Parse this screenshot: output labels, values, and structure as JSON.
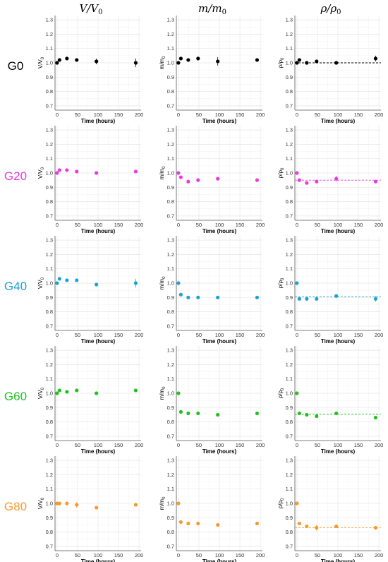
{
  "column_headers": [
    {
      "main": "V/V",
      "sub": "0"
    },
    {
      "main": "m/m",
      "sub": "0"
    },
    {
      "main": "ρ/ρ",
      "sub": "0"
    }
  ],
  "row_labels": [
    "G0",
    "G20",
    "G40",
    "G60",
    "G80"
  ],
  "colors": {
    "G0": "#000000",
    "G20": "#e83ae0",
    "G40": "#1aa3cf",
    "G60": "#1ec21e",
    "G80": "#f79a2e",
    "grid": "#e6e6e6",
    "axis": "#555555"
  },
  "axis_text": {
    "xlabel": "Time (hours)",
    "ylabels": [
      {
        "main": "V/V",
        "sub": "0"
      },
      {
        "main": "m/m",
        "sub": "0"
      },
      {
        "main": "ρ/ρ",
        "sub": "0"
      }
    ]
  },
  "chart_data": {
    "type": "scatter",
    "layout": "5 rows x 3 columns",
    "xlim": [
      -5,
      205
    ],
    "ylim": [
      0.67,
      1.33
    ],
    "x_ticks": [
      0,
      50,
      100,
      150,
      200
    ],
    "y_ticks": [
      0.7,
      0.8,
      0.9,
      1.0,
      1.1,
      1.2,
      1.3
    ],
    "y_tick_labels": [
      "0.7",
      "0.8",
      "0.9",
      "1.0",
      "1.1",
      "1.2",
      "1.3"
    ],
    "x": [
      0,
      6,
      24,
      48,
      96,
      192
    ],
    "panels": [
      {
        "row": "G0",
        "col": "V/V0",
        "y": [
          1.0,
          1.02,
          1.03,
          1.02,
          1.01,
          1.0
        ],
        "err": [
          0.01,
          0.01,
          0.01,
          0.01,
          0.02,
          0.03
        ],
        "fit": null
      },
      {
        "row": "G0",
        "col": "m/m0",
        "y": [
          1.0,
          1.03,
          1.02,
          1.03,
          1.01,
          1.02
        ],
        "err": [
          0.005,
          0.005,
          0.005,
          0.005,
          0.03,
          0.005
        ],
        "fit": null
      },
      {
        "row": "G0",
        "col": "ρ/ρ0",
        "y": [
          1.0,
          1.02,
          1.0,
          1.01,
          1.0,
          1.03
        ],
        "err": [
          0.01,
          0.01,
          0.01,
          0.01,
          0.01,
          0.02
        ],
        "fit": 1.0
      },
      {
        "row": "G20",
        "col": "V/V0",
        "y": [
          1.0,
          1.02,
          1.02,
          1.01,
          1.0,
          1.01
        ],
        "err": [
          0.01,
          0.01,
          0.01,
          0.01,
          0.01,
          0.01
        ],
        "fit": null
      },
      {
        "row": "G20",
        "col": "m/m0",
        "y": [
          1.0,
          0.97,
          0.94,
          0.95,
          0.96,
          0.95
        ],
        "err": [
          0.005,
          0.005,
          0.005,
          0.005,
          0.005,
          0.005
        ],
        "fit": null
      },
      {
        "row": "G20",
        "col": "ρ/ρ0",
        "y": [
          1.0,
          0.95,
          0.93,
          0.94,
          0.96,
          0.94
        ],
        "err": [
          0.005,
          0.01,
          0.01,
          0.01,
          0.02,
          0.01
        ],
        "fit": 0.95
      },
      {
        "row": "G40",
        "col": "V/V0",
        "y": [
          1.0,
          1.03,
          1.02,
          1.02,
          0.99,
          1.0
        ],
        "err": [
          0.01,
          0.01,
          0.01,
          0.01,
          0.01,
          0.03
        ],
        "fit": null
      },
      {
        "row": "G40",
        "col": "m/m0",
        "y": [
          1.0,
          0.92,
          0.9,
          0.9,
          0.9,
          0.9
        ],
        "err": [
          0.005,
          0.005,
          0.005,
          0.005,
          0.005,
          0.005
        ],
        "fit": null
      },
      {
        "row": "G40",
        "col": "ρ/ρ0",
        "y": [
          1.0,
          0.89,
          0.89,
          0.89,
          0.91,
          0.89
        ],
        "err": [
          0.005,
          0.01,
          0.01,
          0.01,
          0.01,
          0.02
        ],
        "fit": 0.905
      },
      {
        "row": "G60",
        "col": "V/V0",
        "y": [
          1.0,
          1.02,
          1.01,
          1.02,
          1.0,
          1.02
        ],
        "err": [
          0.01,
          0.01,
          0.01,
          0.01,
          0.01,
          0.01
        ],
        "fit": null
      },
      {
        "row": "G60",
        "col": "m/m0",
        "y": [
          1.0,
          0.87,
          0.86,
          0.86,
          0.85,
          0.86
        ],
        "err": [
          0.005,
          0.005,
          0.005,
          0.005,
          0.005,
          0.005
        ],
        "fit": null
      },
      {
        "row": "G60",
        "col": "ρ/ρ0",
        "y": [
          1.0,
          0.86,
          0.85,
          0.84,
          0.86,
          0.83
        ],
        "err": [
          0.005,
          0.01,
          0.01,
          0.01,
          0.01,
          0.01
        ],
        "fit": 0.855
      },
      {
        "row": "G80",
        "col": "V/V0",
        "y": [
          1.0,
          1.0,
          1.0,
          0.99,
          0.97,
          0.99
        ],
        "err": [
          0.01,
          0.01,
          0.01,
          0.02,
          0.01,
          0.01
        ],
        "fit": null
      },
      {
        "row": "G80",
        "col": "m/m0",
        "y": [
          1.0,
          0.87,
          0.86,
          0.86,
          0.85,
          0.86
        ],
        "err": [
          0.005,
          0.005,
          0.005,
          0.005,
          0.005,
          0.005
        ],
        "fit": null
      },
      {
        "row": "G80",
        "col": "ρ/ρ0",
        "y": [
          1.0,
          0.86,
          0.84,
          0.83,
          0.84,
          0.83
        ],
        "err": [
          0.005,
          0.01,
          0.01,
          0.02,
          0.01,
          0.01
        ],
        "fit": 0.83
      }
    ],
    "grid": true,
    "legend": "none",
    "fit_line_style": "dashed"
  }
}
